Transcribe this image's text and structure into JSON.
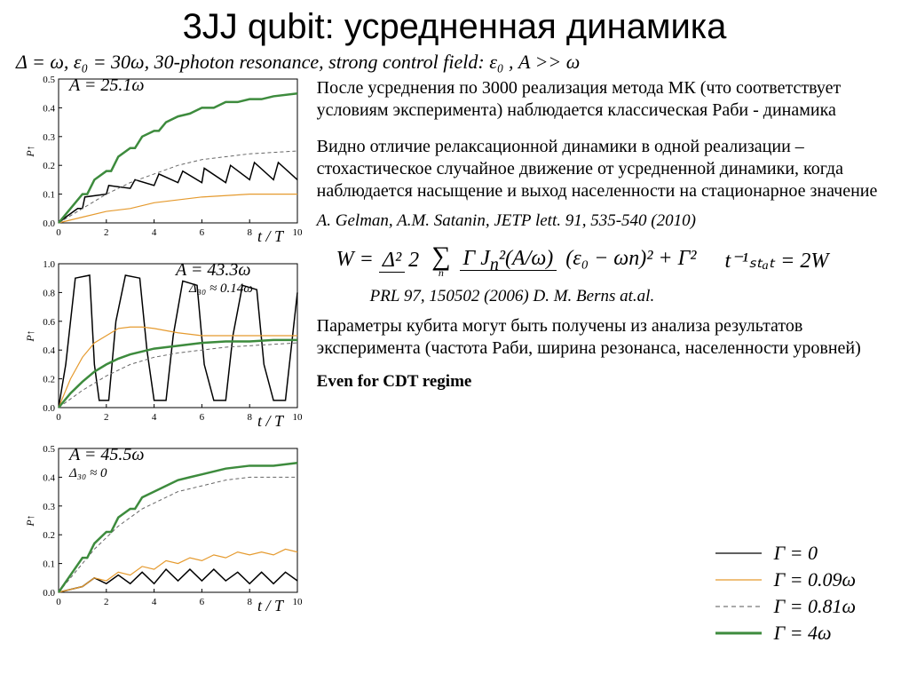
{
  "title": "3JJ qubit: усредненная динамика",
  "formula_top": "Δ = ω, ε₀ = 30ω, 30-photon resonance, strong control field: ε₀ , A >> ω",
  "para1": "После усреднения по 3000 реализация метода МК (что соответствует условиям эксперимента) наблюдается классическая Раби - динамика",
  "para2": "Видно отличие релаксационной динамики в одной реализации – стохастическое случайное движение от усредненной динамики, когда наблюдается насыщение и выход населенности на стационарное значение",
  "cite1": "A. Gelman, A.M. Satanin, JETP lett. 91, 535-540 (2010)",
  "cite2": "PRL 97, 150502 (2006) D. M. Berns at.al.",
  "para3": "Параметры кубита могут быть получены из анализа результатов эксперимента (частота Раби, ширина резонанса, населенности уровней)",
  "note": "Even for CDT regime",
  "eq_W_lhs": "W = ",
  "eq_t": "t⁻¹ₛₜₐₜ = 2W",
  "charts": [
    {
      "title": "A = 25.1ω",
      "sub": "",
      "xlim": [
        0,
        10
      ],
      "ylim": [
        0,
        0.5
      ],
      "ytick": 0.1,
      "series": [
        {
          "color": "#000000",
          "width": 1.5,
          "dash": "",
          "data": [
            [
              0,
              0
            ],
            [
              0.3,
              0.02
            ],
            [
              0.8,
              0.05
            ],
            [
              1,
              0.05
            ],
            [
              1.1,
              0.09
            ],
            [
              2,
              0.1
            ],
            [
              2.1,
              0.13
            ],
            [
              3,
              0.12
            ],
            [
              3.2,
              0.15
            ],
            [
              4,
              0.13
            ],
            [
              4.2,
              0.17
            ],
            [
              5,
              0.14
            ],
            [
              5.2,
              0.18
            ],
            [
              6,
              0.14
            ],
            [
              6.1,
              0.19
            ],
            [
              7,
              0.14
            ],
            [
              7.2,
              0.2
            ],
            [
              8,
              0.15
            ],
            [
              8.2,
              0.21
            ],
            [
              9,
              0.15
            ],
            [
              9.2,
              0.21
            ],
            [
              10,
              0.15
            ]
          ]
        },
        {
          "color": "#e59a2e",
          "width": 1.2,
          "dash": "",
          "data": [
            [
              0,
              0
            ],
            [
              1,
              0.02
            ],
            [
              2,
              0.04
            ],
            [
              3,
              0.05
            ],
            [
              4,
              0.07
            ],
            [
              5,
              0.08
            ],
            [
              6,
              0.09
            ],
            [
              7,
              0.095
            ],
            [
              8,
              0.1
            ],
            [
              9,
              0.1
            ],
            [
              10,
              0.1
            ]
          ]
        },
        {
          "color": "#666666",
          "width": 1.0,
          "dash": "4,3",
          "data": [
            [
              0,
              0
            ],
            [
              1,
              0.05
            ],
            [
              2,
              0.1
            ],
            [
              3,
              0.14
            ],
            [
              4,
              0.17
            ],
            [
              5,
              0.2
            ],
            [
              6,
              0.22
            ],
            [
              7,
              0.23
            ],
            [
              8,
              0.24
            ],
            [
              9,
              0.245
            ],
            [
              10,
              0.25
            ]
          ]
        },
        {
          "color": "#3d8b3d",
          "width": 2.5,
          "dash": "",
          "data": [
            [
              0,
              0
            ],
            [
              0.5,
              0.05
            ],
            [
              1,
              0.1
            ],
            [
              1.2,
              0.1
            ],
            [
              1.5,
              0.15
            ],
            [
              2,
              0.18
            ],
            [
              2.2,
              0.18
            ],
            [
              2.5,
              0.23
            ],
            [
              3,
              0.26
            ],
            [
              3.2,
              0.26
            ],
            [
              3.5,
              0.3
            ],
            [
              4,
              0.32
            ],
            [
              4.2,
              0.32
            ],
            [
              4.5,
              0.35
            ],
            [
              5,
              0.37
            ],
            [
              5.5,
              0.38
            ],
            [
              6,
              0.4
            ],
            [
              6.5,
              0.4
            ],
            [
              7,
              0.42
            ],
            [
              7.5,
              0.42
            ],
            [
              8,
              0.43
            ],
            [
              8.5,
              0.43
            ],
            [
              9,
              0.44
            ],
            [
              10,
              0.45
            ]
          ]
        }
      ]
    },
    {
      "title": "A = 43.3ω",
      "sub": "Δ₃₀ ≈ 0.14ω",
      "xlim": [
        0,
        10
      ],
      "ylim": [
        0,
        1.0
      ],
      "ytick": 0.2,
      "series": [
        {
          "color": "#000000",
          "width": 1.5,
          "dash": "",
          "data": [
            [
              0,
              0
            ],
            [
              0.3,
              0.3
            ],
            [
              0.7,
              0.9
            ],
            [
              1.3,
              0.92
            ],
            [
              1.5,
              0.3
            ],
            [
              1.7,
              0.05
            ],
            [
              2.1,
              0.05
            ],
            [
              2.4,
              0.6
            ],
            [
              2.8,
              0.92
            ],
            [
              3.4,
              0.9
            ],
            [
              3.7,
              0.4
            ],
            [
              4,
              0.05
            ],
            [
              4.5,
              0.05
            ],
            [
              4.8,
              0.5
            ],
            [
              5.2,
              0.88
            ],
            [
              5.8,
              0.85
            ],
            [
              6.1,
              0.3
            ],
            [
              6.5,
              0.05
            ],
            [
              7,
              0.05
            ],
            [
              7.3,
              0.5
            ],
            [
              7.7,
              0.85
            ],
            [
              8.3,
              0.82
            ],
            [
              8.6,
              0.3
            ],
            [
              9,
              0.05
            ],
            [
              9.5,
              0.05
            ],
            [
              9.8,
              0.5
            ],
            [
              10,
              0.8
            ]
          ]
        },
        {
          "color": "#e59a2e",
          "width": 1.2,
          "dash": "",
          "data": [
            [
              0,
              0
            ],
            [
              0.5,
              0.2
            ],
            [
              1,
              0.35
            ],
            [
              1.5,
              0.45
            ],
            [
              2,
              0.5
            ],
            [
              2.5,
              0.55
            ],
            [
              3,
              0.56
            ],
            [
              3.5,
              0.56
            ],
            [
              4,
              0.55
            ],
            [
              5,
              0.52
            ],
            [
              6,
              0.5
            ],
            [
              7,
              0.5
            ],
            [
              8,
              0.5
            ],
            [
              9,
              0.5
            ],
            [
              10,
              0.5
            ]
          ]
        },
        {
          "color": "#666666",
          "width": 1.0,
          "dash": "4,3",
          "data": [
            [
              0,
              0
            ],
            [
              1,
              0.12
            ],
            [
              2,
              0.22
            ],
            [
              3,
              0.3
            ],
            [
              4,
              0.35
            ],
            [
              5,
              0.38
            ],
            [
              6,
              0.4
            ],
            [
              7,
              0.42
            ],
            [
              8,
              0.43
            ],
            [
              9,
              0.44
            ],
            [
              10,
              0.45
            ]
          ]
        },
        {
          "color": "#3d8b3d",
          "width": 2.5,
          "dash": "",
          "data": [
            [
              0,
              0
            ],
            [
              0.5,
              0.1
            ],
            [
              1,
              0.18
            ],
            [
              1.5,
              0.25
            ],
            [
              2,
              0.3
            ],
            [
              2.5,
              0.34
            ],
            [
              3,
              0.37
            ],
            [
              4,
              0.41
            ],
            [
              5,
              0.43
            ],
            [
              6,
              0.45
            ],
            [
              7,
              0.46
            ],
            [
              8,
              0.46
            ],
            [
              9,
              0.47
            ],
            [
              10,
              0.47
            ]
          ]
        }
      ]
    },
    {
      "title": "A = 45.5ω",
      "sub": "Δ₃₀ ≈ 0",
      "xlim": [
        0,
        10
      ],
      "ylim": [
        0,
        0.5
      ],
      "ytick": 0.1,
      "series": [
        {
          "color": "#000000",
          "width": 1.5,
          "dash": "",
          "data": [
            [
              0,
              0
            ],
            [
              0.5,
              0.01
            ],
            [
              1,
              0.02
            ],
            [
              1.5,
              0.05
            ],
            [
              2,
              0.03
            ],
            [
              2.5,
              0.06
            ],
            [
              3,
              0.03
            ],
            [
              3.5,
              0.07
            ],
            [
              4,
              0.03
            ],
            [
              4.5,
              0.08
            ],
            [
              5,
              0.04
            ],
            [
              5.5,
              0.08
            ],
            [
              6,
              0.04
            ],
            [
              6.5,
              0.08
            ],
            [
              7,
              0.04
            ],
            [
              7.5,
              0.07
            ],
            [
              8,
              0.03
            ],
            [
              8.5,
              0.07
            ],
            [
              9,
              0.03
            ],
            [
              9.5,
              0.07
            ],
            [
              10,
              0.04
            ]
          ]
        },
        {
          "color": "#e59a2e",
          "width": 1.2,
          "dash": "",
          "data": [
            [
              0,
              0
            ],
            [
              1,
              0.02
            ],
            [
              1.5,
              0.05
            ],
            [
              2,
              0.04
            ],
            [
              2.5,
              0.07
            ],
            [
              3,
              0.06
            ],
            [
              3.5,
              0.09
            ],
            [
              4,
              0.08
            ],
            [
              4.5,
              0.11
            ],
            [
              5,
              0.1
            ],
            [
              5.5,
              0.12
            ],
            [
              6,
              0.11
            ],
            [
              6.5,
              0.13
            ],
            [
              7,
              0.12
            ],
            [
              7.5,
              0.14
            ],
            [
              8,
              0.13
            ],
            [
              8.5,
              0.14
            ],
            [
              9,
              0.13
            ],
            [
              9.5,
              0.15
            ],
            [
              10,
              0.14
            ]
          ]
        },
        {
          "color": "#666666",
          "width": 1.0,
          "dash": "4,3",
          "data": [
            [
              0,
              0
            ],
            [
              0.5,
              0.05
            ],
            [
              1,
              0.1
            ],
            [
              1.5,
              0.15
            ],
            [
              2,
              0.19
            ],
            [
              2.5,
              0.23
            ],
            [
              3,
              0.26
            ],
            [
              3.5,
              0.29
            ],
            [
              4,
              0.31
            ],
            [
              4.5,
              0.33
            ],
            [
              5,
              0.35
            ],
            [
              5.5,
              0.36
            ],
            [
              6,
              0.37
            ],
            [
              7,
              0.39
            ],
            [
              8,
              0.4
            ],
            [
              9,
              0.4
            ],
            [
              10,
              0.4
            ]
          ]
        },
        {
          "color": "#3d8b3d",
          "width": 2.5,
          "dash": "",
          "data": [
            [
              0,
              0
            ],
            [
              0.5,
              0.06
            ],
            [
              1,
              0.12
            ],
            [
              1.2,
              0.12
            ],
            [
              1.5,
              0.17
            ],
            [
              2,
              0.21
            ],
            [
              2.2,
              0.21
            ],
            [
              2.5,
              0.26
            ],
            [
              3,
              0.29
            ],
            [
              3.2,
              0.29
            ],
            [
              3.5,
              0.33
            ],
            [
              4,
              0.35
            ],
            [
              4.5,
              0.37
            ],
            [
              5,
              0.39
            ],
            [
              5.5,
              0.4
            ],
            [
              6,
              0.41
            ],
            [
              7,
              0.43
            ],
            [
              8,
              0.44
            ],
            [
              9,
              0.44
            ],
            [
              10,
              0.45
            ]
          ]
        }
      ]
    }
  ],
  "chart_xlabel": "t / T",
  "chart_ylabel": "P↑",
  "legend": [
    {
      "color": "#000000",
      "width": 1.3,
      "dash": "",
      "label": "Γ = 0"
    },
    {
      "color": "#e59a2e",
      "width": 1.3,
      "dash": "",
      "label": "Γ = 0.09ω"
    },
    {
      "color": "#555555",
      "width": 1.0,
      "dash": "5,4",
      "label": "Γ = 0.81ω"
    },
    {
      "color": "#3d8b3d",
      "width": 3.0,
      "dash": "",
      "label": "Γ = 4ω"
    }
  ]
}
